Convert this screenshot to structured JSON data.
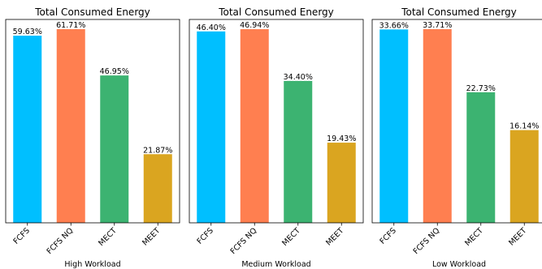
{
  "chart_data": [
    {
      "type": "bar",
      "title": "Total Consumed Energy",
      "xlabel": "High Workload",
      "ylabel": "",
      "categories": [
        "FCFS",
        "FCFS NQ",
        "MECT",
        "MEET"
      ],
      "values": [
        59.63,
        61.71,
        46.95,
        21.87
      ],
      "labels": [
        "59.63%",
        "61.71%",
        "46.95%",
        "21.87%"
      ],
      "ylim": [
        0,
        64.8
      ]
    },
    {
      "type": "bar",
      "title": "Total Consumed Energy",
      "xlabel": "Medium Workload",
      "ylabel": "",
      "categories": [
        "FCFS",
        "FCFS NQ",
        "MECT",
        "MEET"
      ],
      "values": [
        46.4,
        46.94,
        34.4,
        19.43
      ],
      "labels": [
        "46.40%",
        "46.94%",
        "34.40%",
        "19.43%"
      ],
      "ylim": [
        0,
        49.3
      ]
    },
    {
      "type": "bar",
      "title": "Total Consumed Energy",
      "xlabel": "Low Workload",
      "ylabel": "",
      "categories": [
        "FCFS",
        "FCFS NQ",
        "MECT",
        "MEET"
      ],
      "values": [
        33.66,
        33.71,
        22.73,
        16.14
      ],
      "labels": [
        "33.66%",
        "33.71%",
        "22.73%",
        "16.14%"
      ],
      "ylim": [
        0,
        35.4
      ]
    }
  ],
  "colors": [
    "#00bfff",
    "#ff7f50",
    "#3cb371",
    "#daa520"
  ]
}
